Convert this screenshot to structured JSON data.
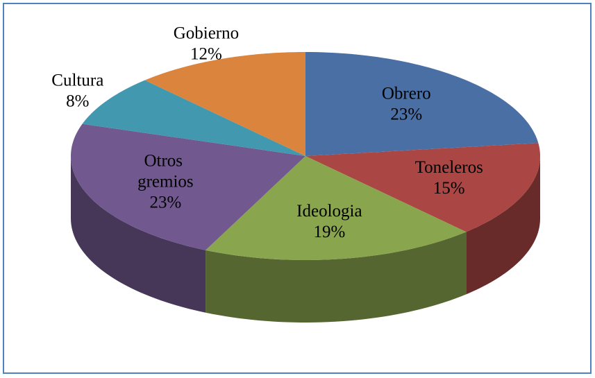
{
  "chart_data": {
    "type": "pie3d",
    "categories": [
      "Obrero",
      "Toneleros",
      "Ideologia",
      "Otros gremios",
      "Cultura",
      "Gobierno"
    ],
    "values": [
      23,
      15,
      19,
      23,
      8,
      12
    ],
    "value_labels": [
      "23%",
      "15%",
      "19%",
      "23%",
      "8%",
      "12%"
    ],
    "colors": [
      "#4a6fa5",
      "#aa4643",
      "#89a54e",
      "#71588f",
      "#4198af",
      "#db843d"
    ]
  }
}
